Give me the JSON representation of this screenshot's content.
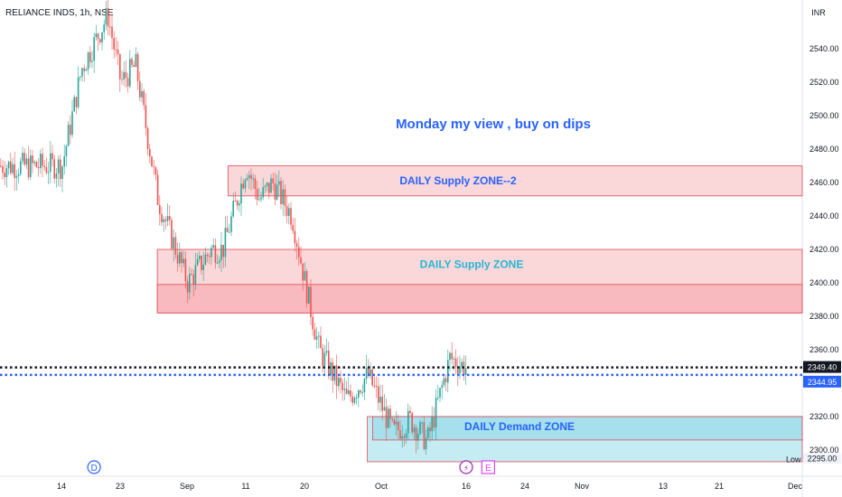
{
  "header": {
    "symbol_label": "RELIANCE INDS, 1h, NSE"
  },
  "currency": "INR",
  "colors": {
    "up": "#26a69a",
    "down": "#ef5350",
    "supply_fill": "#f8c9cc",
    "supply_stroke": "#e04a56",
    "demand_fill": "#b3e5ef",
    "demand_stroke": "#e04a56",
    "note_text": "#2962ff",
    "zone_text_blue": "#2962ff",
    "zone_text_cyan": "#26b6d4",
    "price_black": "#131722",
    "price_blue": "#2962ff"
  },
  "chart_data": {
    "type": "candlestick",
    "timeframe": "1h",
    "x_ticks": [
      "14",
      "23",
      "Sep",
      "11",
      "20",
      "Oct",
      "16",
      "24",
      "Nov",
      "13",
      "21",
      "Dec"
    ],
    "y_ticks": [
      2300,
      2320,
      2340,
      2360,
      2380,
      2400,
      2420,
      2440,
      2460,
      2480,
      2500,
      2520,
      2540
    ],
    "ylim": [
      2292,
      2566
    ],
    "price_path": [
      {
        "x": "14 Aug",
        "y": 2470
      },
      {
        "x": "17 Aug",
        "y": 2528
      },
      {
        "x": "21 Aug",
        "y": 2560
      },
      {
        "x": "23 Aug",
        "y": 2520
      },
      {
        "x": "25 Aug",
        "y": 2530
      },
      {
        "x": "28 Aug",
        "y": 2450
      },
      {
        "x": "30 Aug",
        "y": 2425
      },
      {
        "x": "1 Sep",
        "y": 2400
      },
      {
        "x": "5 Sep",
        "y": 2420
      },
      {
        "x": "7 Sep",
        "y": 2420
      },
      {
        "x": "11 Sep",
        "y": 2470
      },
      {
        "x": "13 Sep",
        "y": 2450
      },
      {
        "x": "15 Sep",
        "y": 2460
      },
      {
        "x": "18 Sep",
        "y": 2440
      },
      {
        "x": "20 Sep",
        "y": 2400
      },
      {
        "x": "22 Sep",
        "y": 2360
      },
      {
        "x": "26 Sep",
        "y": 2330
      },
      {
        "x": "29 Sep",
        "y": 2345
      },
      {
        "x": "3 Oct",
        "y": 2310
      },
      {
        "x": "6 Oct",
        "y": 2318
      },
      {
        "x": "9 Oct",
        "y": 2305
      },
      {
        "x": "11 Oct",
        "y": 2330
      },
      {
        "x": "13 Oct",
        "y": 2355
      },
      {
        "x": "16 Oct",
        "y": 2349
      }
    ],
    "current_price_label": "2349.40",
    "current_price": 2349.4,
    "second_price_label": "2344.95",
    "second_price": 2344.95,
    "low_label": "Low",
    "low_price_label": "2295.00",
    "low_price": 2295.0,
    "zones": [
      {
        "label": "DAILY Supply  ZONE--2",
        "kind": "supply",
        "top": 2470,
        "bottom": 2452,
        "start": "8 Sep"
      },
      {
        "label": "DAILY Supply  ZONE",
        "kind": "supply",
        "top": 2420,
        "bottom": 2382,
        "start": "28 Aug",
        "inner_line": 2399
      },
      {
        "label": "DAILY Demand  ZONE",
        "kind": "demand",
        "top": 2320,
        "bottom": 2293,
        "start": "29 Sep",
        "inner_line": 2306
      }
    ],
    "note": "Monday  my view , buy on dips",
    "markers": [
      {
        "label": "D",
        "kind": "dividend",
        "x": "19 Aug"
      },
      {
        "label": "⚡",
        "kind": "split",
        "x": "16 Oct"
      },
      {
        "label": "E",
        "kind": "earnings",
        "x": "19 Oct"
      }
    ]
  }
}
